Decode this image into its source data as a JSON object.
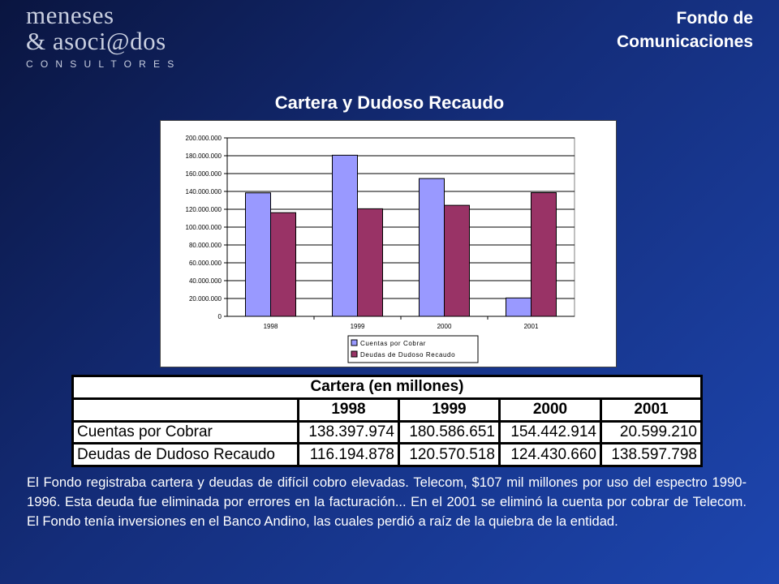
{
  "logo": {
    "line1": "meneses",
    "line2": "& asoci@dos",
    "sub": "CONSULTORES"
  },
  "header": {
    "line1": "Fondo de",
    "line2": "Comunicaciones"
  },
  "page_title": "Cartera y Dudoso Recaudo",
  "colors": {
    "background_dark": "#0a1540",
    "background_light": "#1d46b0",
    "series_1": "#9999ff",
    "series_2": "#993366"
  },
  "chart_data": {
    "type": "bar",
    "categories": [
      "1998",
      "1999",
      "2000",
      "2001"
    ],
    "series": [
      {
        "name": "Cuentas por Cobrar",
        "color": "#9999ff",
        "values": [
          138397974,
          180586651,
          154442914,
          20599210
        ]
      },
      {
        "name": "Deudas de Dudoso Recaudo",
        "color": "#993366",
        "values": [
          116194878,
          120570518,
          124430660,
          138597798
        ]
      }
    ],
    "ylim": [
      0,
      200000000
    ],
    "yticks": [
      "0",
      "20.000.000",
      "40.000.000",
      "60.000.000",
      "80.000.000",
      "100.000.000",
      "120.000.000",
      "140.000.000",
      "160.000.000",
      "180.000.000",
      "200.000.000"
    ],
    "grid": true,
    "legend_position": "bottom"
  },
  "table": {
    "caption": "Cartera (en millones)",
    "years": [
      "1998",
      "1999",
      "2000",
      "2001"
    ],
    "rows": [
      {
        "label": "Cuentas por Cobrar",
        "values": [
          "138.397.974",
          "180.586.651",
          "154.442.914",
          "20.599.210"
        ]
      },
      {
        "label": "Deudas de Dudoso Recaudo",
        "values": [
          "116.194.878",
          "120.570.518",
          "124.430.660",
          "138.597.798"
        ]
      }
    ]
  },
  "description": "El Fondo registraba  cartera y deudas de difícil cobro elevadas. Telecom, $107 mil millones por uso del espectro  1990-1996. Esta deuda fue eliminada por errores  en la facturación... En el 2001 se eliminó la cuenta por cobrar de Telecom. El Fondo tenía  inversiones en el Banco Andino, las cuales perdió a raíz de la quiebra de la entidad."
}
